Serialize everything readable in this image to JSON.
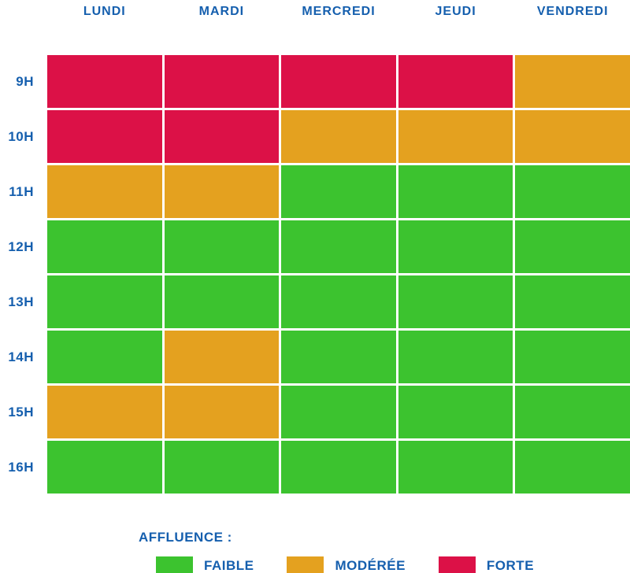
{
  "colors": {
    "text_blue": "#155FAE",
    "background": "#FFFFFF"
  },
  "chart_data": {
    "type": "heatmap",
    "x_labels": [
      "LUNDI",
      "MARDI",
      "MERCREDI",
      "JEUDI",
      "VENDREDI"
    ],
    "y_labels": [
      "9H",
      "10H",
      "11H",
      "12H",
      "13H",
      "14H",
      "15H",
      "16H"
    ],
    "values": [
      [
        "forte",
        "forte",
        "forte",
        "forte",
        "moderee"
      ],
      [
        "forte",
        "forte",
        "moderee",
        "moderee",
        "moderee"
      ],
      [
        "moderee",
        "moderee",
        "faible",
        "faible",
        "faible"
      ],
      [
        "faible",
        "faible",
        "faible",
        "faible",
        "faible"
      ],
      [
        "faible",
        "faible",
        "faible",
        "faible",
        "faible"
      ],
      [
        "faible",
        "moderee",
        "faible",
        "faible",
        "faible"
      ],
      [
        "moderee",
        "moderee",
        "faible",
        "faible",
        "faible"
      ],
      [
        "faible",
        "faible",
        "faible",
        "faible",
        "faible"
      ]
    ],
    "level_colors": {
      "faible": "#3CC32F",
      "moderee": "#E4A11F",
      "forte": "#DC1147"
    },
    "legend": {
      "title": "AFFLUENCE :",
      "entries": [
        {
          "label": "FAIBLE",
          "level": "faible"
        },
        {
          "label": "MODÉRÉE",
          "level": "moderee"
        },
        {
          "label": "FORTE",
          "level": "forte"
        }
      ],
      "position": "bottom"
    },
    "grid": "white 3px separators",
    "title": ""
  }
}
